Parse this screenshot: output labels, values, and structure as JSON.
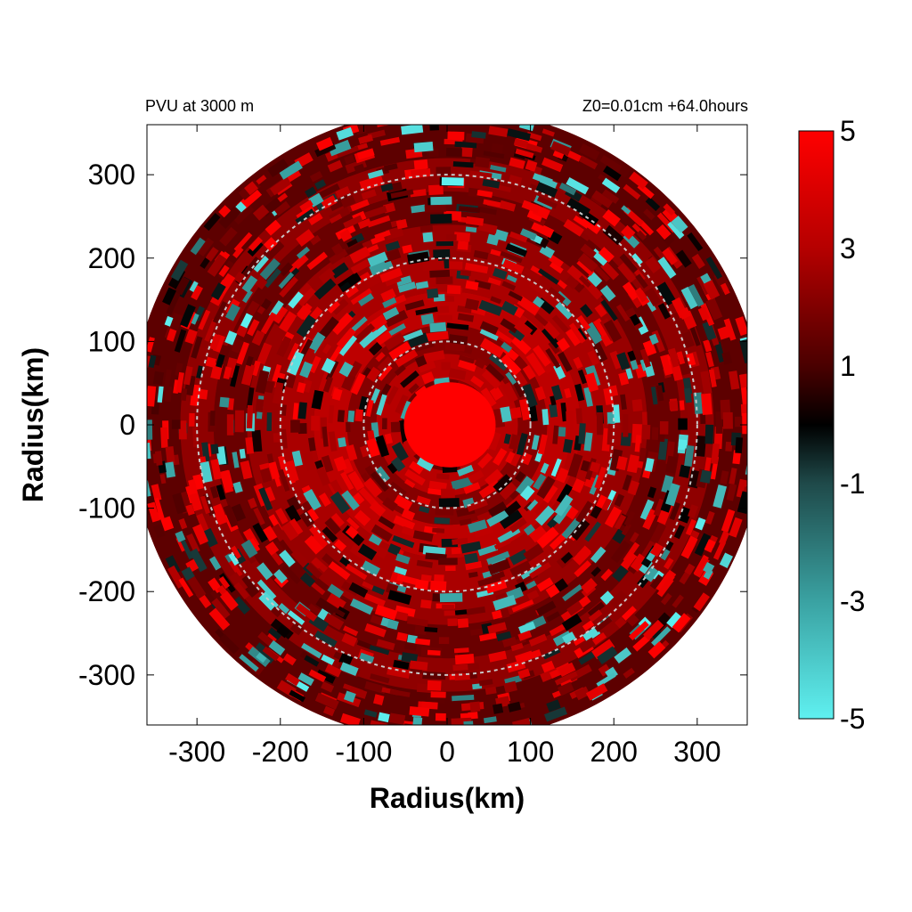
{
  "chart_data": {
    "type": "heatmap",
    "title_left": "PVU at  3000 m",
    "title_right": "Z0=0.01cm  +64.0hours",
    "xlabel": "Radius(km)",
    "ylabel": "Radius(km)",
    "xlim": [
      -360,
      360
    ],
    "ylim": [
      -360,
      360
    ],
    "xticks": [
      -300,
      -200,
      -100,
      0,
      100,
      200,
      300
    ],
    "yticks": [
      300,
      200,
      100,
      0,
      -100,
      -200,
      -300
    ],
    "reference_circles_km": [
      100,
      200,
      300
    ],
    "data_domain_radius_km": 380,
    "colorbar": {
      "min": -5,
      "max": 5,
      "ticks": [
        5,
        3,
        1,
        -1,
        -3,
        -5
      ],
      "stops": [
        {
          "value": -5,
          "color": "#5ff0f0"
        },
        {
          "value": -3,
          "color": "#3aa2a2"
        },
        {
          "value": -1,
          "color": "#1f4a4a"
        },
        {
          "value": 0,
          "color": "#000000"
        },
        {
          "value": 1,
          "color": "#4a0000"
        },
        {
          "value": 3,
          "color": "#b50000"
        },
        {
          "value": 5,
          "color": "#ff0000"
        }
      ]
    },
    "field_description": {
      "core_radius_km": 55,
      "core_value": 5
    }
  }
}
